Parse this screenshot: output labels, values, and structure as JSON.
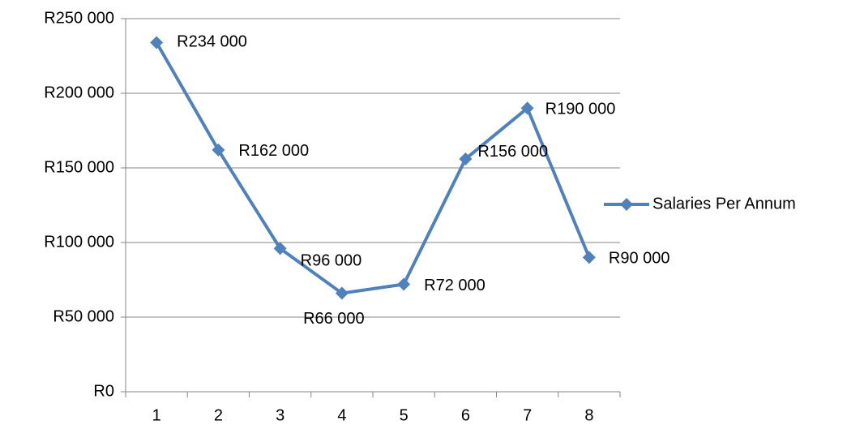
{
  "chart_data": {
    "type": "line",
    "categories": [
      "1",
      "2",
      "3",
      "4",
      "5",
      "6",
      "7",
      "8"
    ],
    "series": [
      {
        "name": "Salaries Per Annum",
        "color": "#4f81bd",
        "values": [
          234000,
          162000,
          96000,
          66000,
          72000,
          156000,
          190000,
          90000
        ],
        "value_labels": [
          "R234 000",
          "R162 000",
          "R96 000",
          "R66 000",
          "R72 000",
          "R156 000",
          "R190 000",
          "R90 000"
        ]
      }
    ],
    "ylim": [
      0,
      250000
    ],
    "yticks": [
      {
        "value": 0,
        "label": "R0"
      },
      {
        "value": 50000,
        "label": "R50 000"
      },
      {
        "value": 100000,
        "label": "R100 000"
      },
      {
        "value": 150000,
        "label": "R150 000"
      },
      {
        "value": 200000,
        "label": "R200 000"
      },
      {
        "value": 250000,
        "label": "R250 000"
      }
    ],
    "grid": true,
    "legend": "right"
  }
}
